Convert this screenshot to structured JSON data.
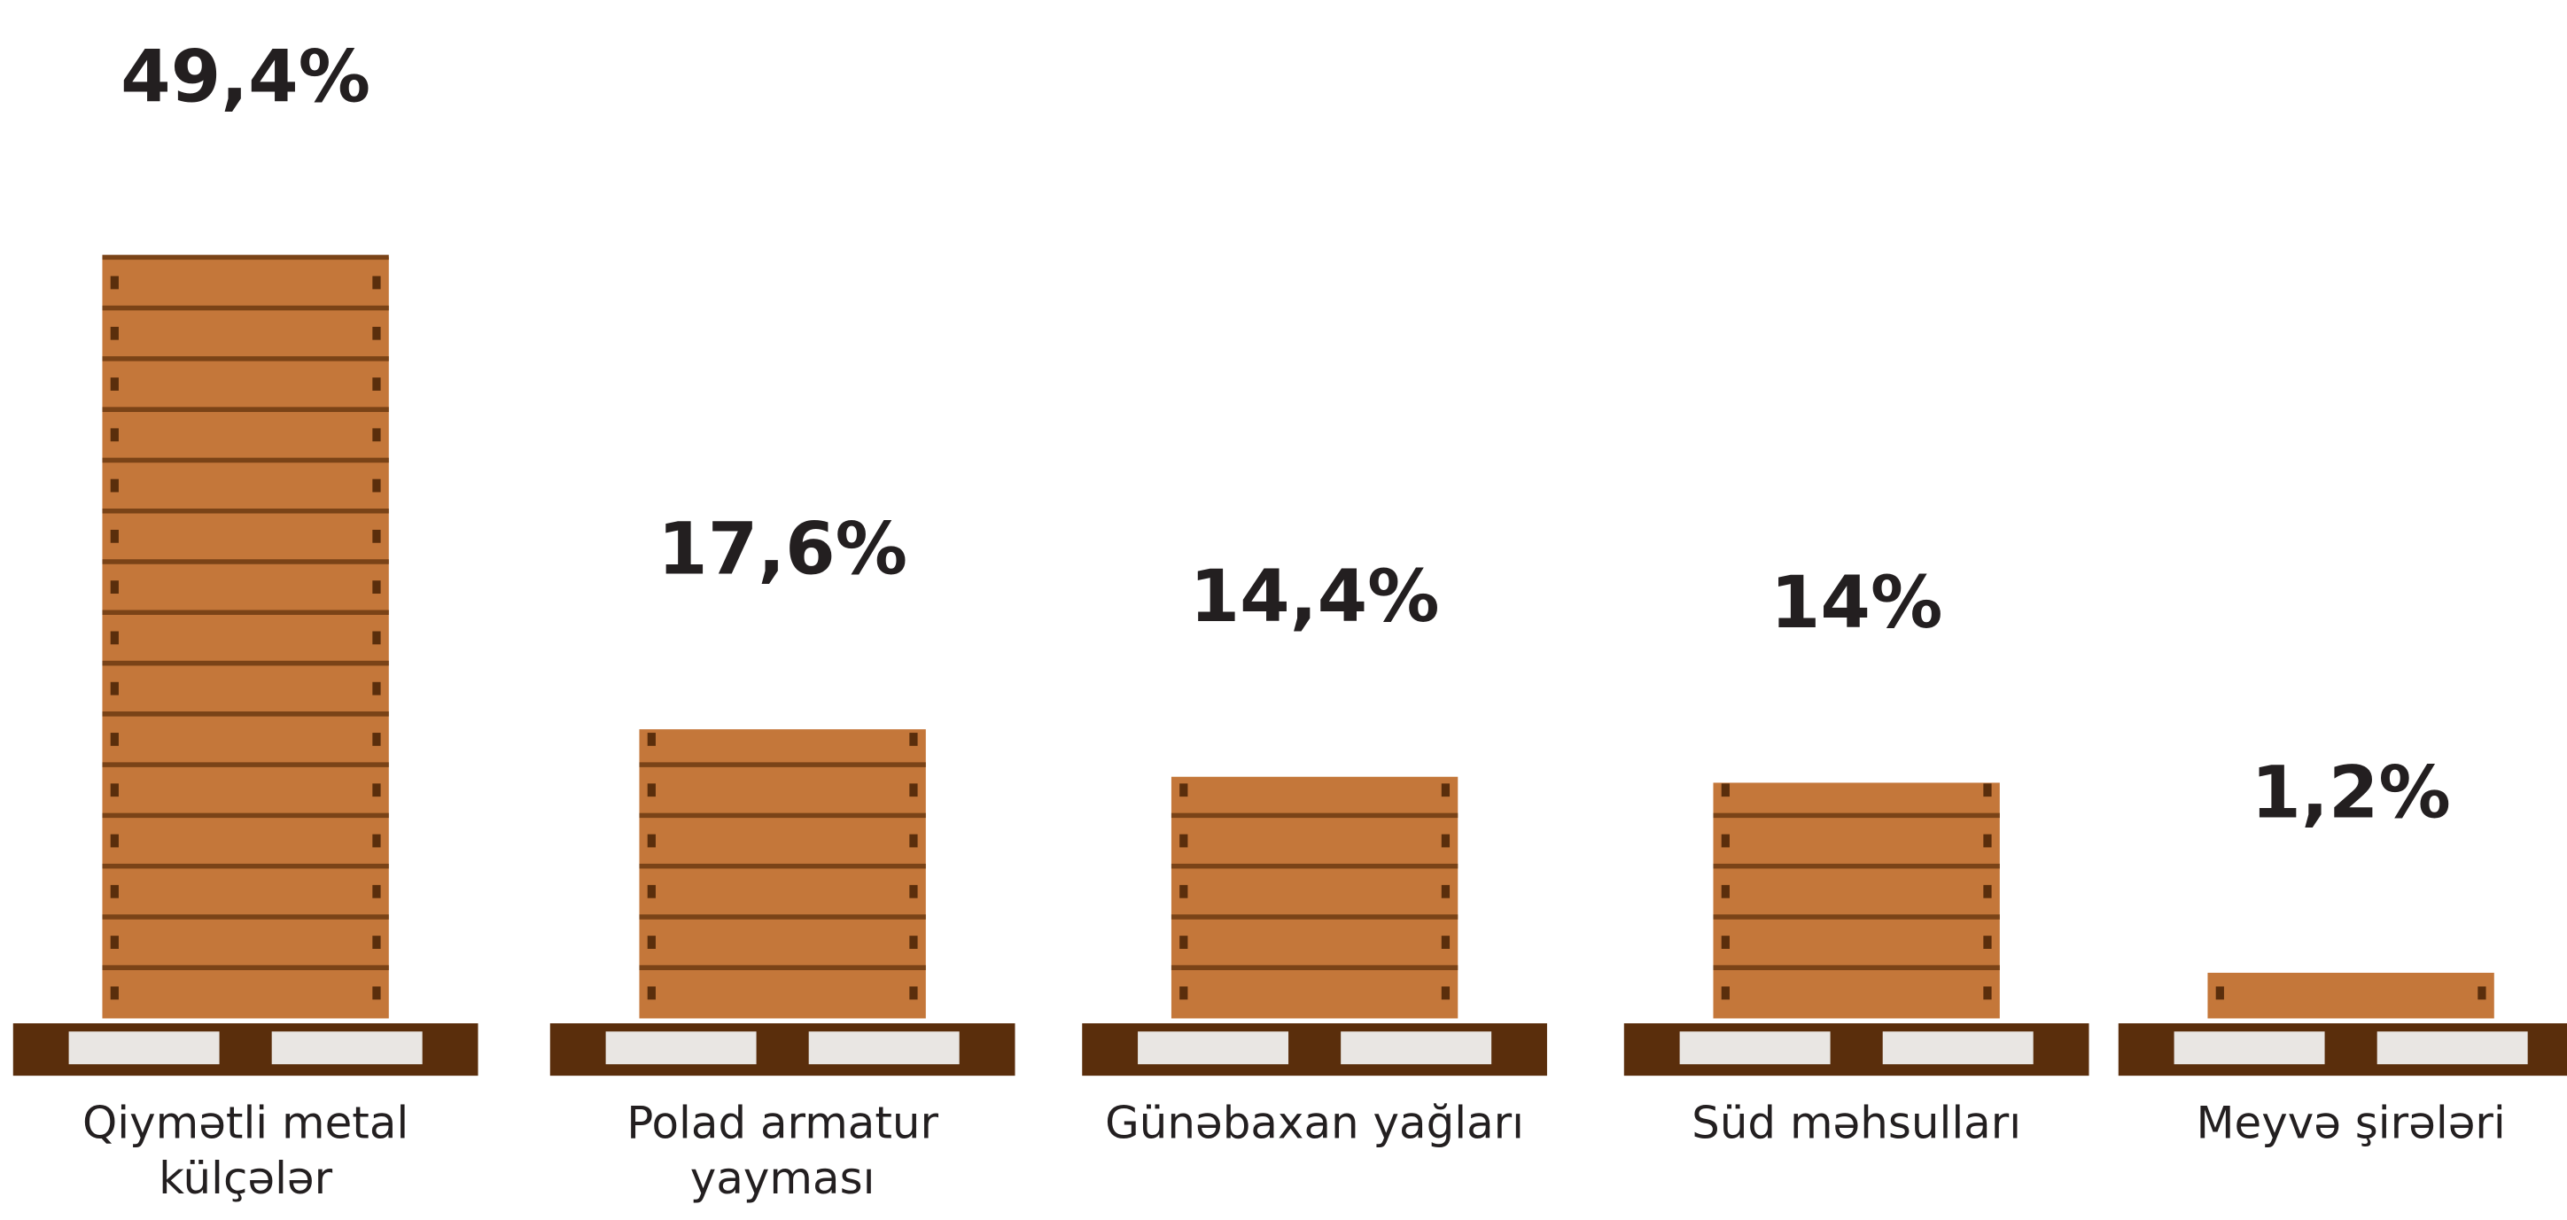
{
  "chart_data": {
    "type": "bar",
    "categories": [
      "Qiymətli metal külçələr",
      "Polad armatur yayması",
      "Günəbaxan yağları",
      "Süd məhsulları",
      "Meyvə şirələri"
    ],
    "values": [
      49.4,
      17.6,
      14.4,
      14,
      1.2
    ],
    "value_labels": [
      "49,4%",
      "17,6%",
      "14,4%",
      "14%",
      "1,2%"
    ],
    "color": "#c4773a"
  }
}
